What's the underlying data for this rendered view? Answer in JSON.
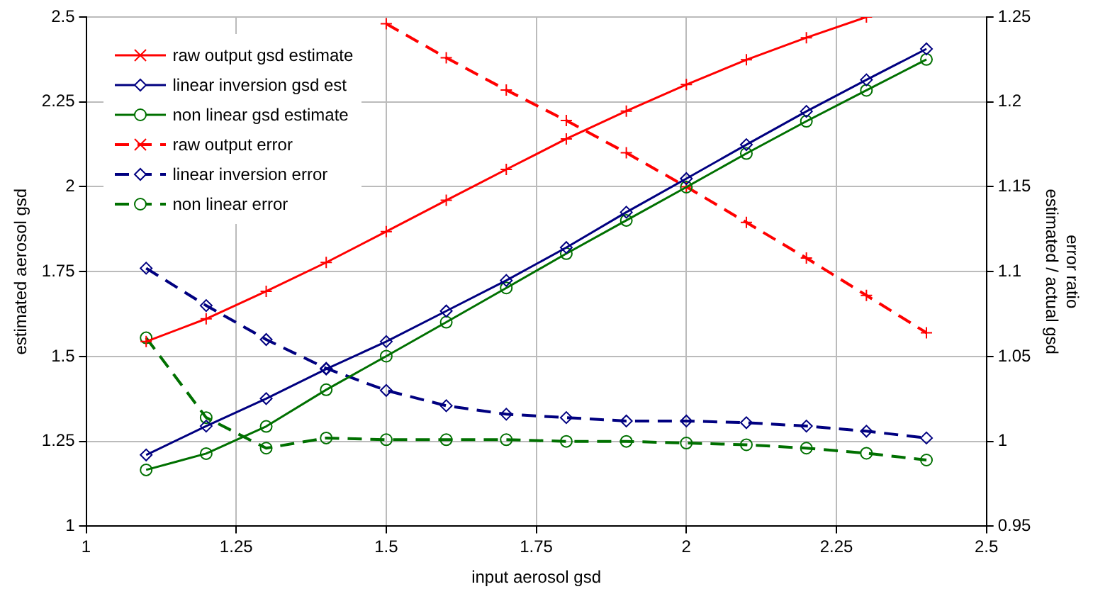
{
  "chart_data": {
    "type": "line",
    "xlabel": "input aerosol gsd",
    "ylabel": "estimated aerosol gsd",
    "y2label": "error ratio\nestimated / actual gsd",
    "x": [
      1.1,
      1.2,
      1.3,
      1.4,
      1.5,
      1.6,
      1.7,
      1.8,
      1.9,
      2.0,
      2.1,
      2.2,
      2.3,
      2.4
    ],
    "series": [
      {
        "name": "raw output gsd estimate",
        "color": "#ff0000",
        "marker": "cross",
        "line_style": "solid",
        "values": [
          1.544,
          1.611,
          1.692,
          1.777,
          1.868,
          1.96,
          2.051,
          2.141,
          2.223,
          2.301,
          2.374,
          2.439,
          2.5,
          null
        ]
      },
      {
        "name": "linear inversion gsd est",
        "color": "#000080",
        "marker": "diamond",
        "line_style": "solid",
        "values": [
          1.21,
          1.295,
          1.376,
          1.463,
          1.544,
          1.634,
          1.724,
          1.821,
          1.925,
          2.024,
          2.124,
          2.222,
          2.315,
          2.406
        ]
      },
      {
        "name": "non linear gsd estimate",
        "color": "#007000",
        "marker": "circle",
        "line_style": "solid",
        "values": [
          1.166,
          1.214,
          1.294,
          1.402,
          1.501,
          1.601,
          1.702,
          1.803,
          1.901,
          1.999,
          2.098,
          2.193,
          2.284,
          2.375
        ]
      },
      {
        "name": "raw output error",
        "color": "#ff0000",
        "marker": "cross",
        "line_style": "dashed",
        "axis": "y2",
        "values": [
          null,
          null,
          null,
          null,
          1.246,
          1.226,
          1.207,
          1.189,
          1.17,
          1.15,
          1.129,
          1.108,
          1.086,
          1.064
        ]
      },
      {
        "name": "linear inversion error",
        "color": "#000080",
        "marker": "diamond",
        "line_style": "dashed",
        "axis": "y2",
        "values": [
          1.102,
          1.08,
          1.06,
          1.043,
          1.03,
          1.021,
          1.016,
          1.014,
          1.012,
          1.012,
          1.011,
          1.009,
          1.006,
          1.002
        ]
      },
      {
        "name": "non linear error",
        "color": "#007000",
        "marker": "circle",
        "line_style": "dashed",
        "axis": "y2",
        "values": [
          1.061,
          1.014,
          0.996,
          1.002,
          1.001,
          1.001,
          1.001,
          1.0,
          1.0,
          0.999,
          0.998,
          0.996,
          0.993,
          0.989
        ]
      }
    ],
    "xlim": [
      1,
      2.5
    ],
    "xticks": [
      1,
      1.25,
      1.5,
      1.75,
      2,
      2.25,
      2.5
    ],
    "ylim": [
      1,
      2.5
    ],
    "yticks": [
      1,
      1.25,
      1.5,
      1.75,
      2,
      2.25,
      2.5
    ],
    "y2lim": [
      0.95,
      1.25
    ],
    "y2ticks": [
      0.95,
      1,
      1.05,
      1.1,
      1.15,
      1.2,
      1.25
    ],
    "grid": true,
    "legend": "top left"
  }
}
